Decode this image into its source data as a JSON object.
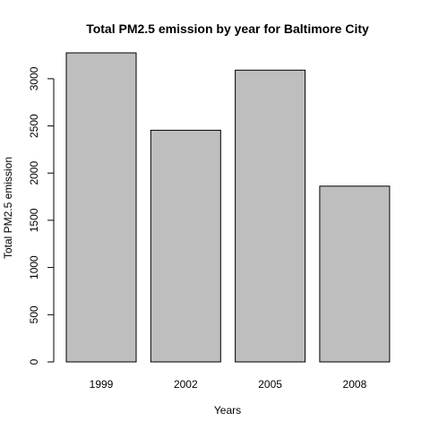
{
  "chart_data": {
    "type": "bar",
    "title": "Total PM2.5 emission by year for Baltimore City",
    "xlabel": "Years",
    "ylabel": "Total PM2.5 emission",
    "categories": [
      "1999",
      "2002",
      "2005",
      "2008"
    ],
    "values": [
      3274,
      2454,
      3091,
      1862
    ],
    "ylim": [
      0,
      3274
    ],
    "yticks": [
      0,
      500,
      1000,
      1500,
      2000,
      2500,
      3000
    ],
    "bar_color": "#bebebe",
    "border_color": "#000000",
    "grid": false,
    "legend": "none"
  }
}
